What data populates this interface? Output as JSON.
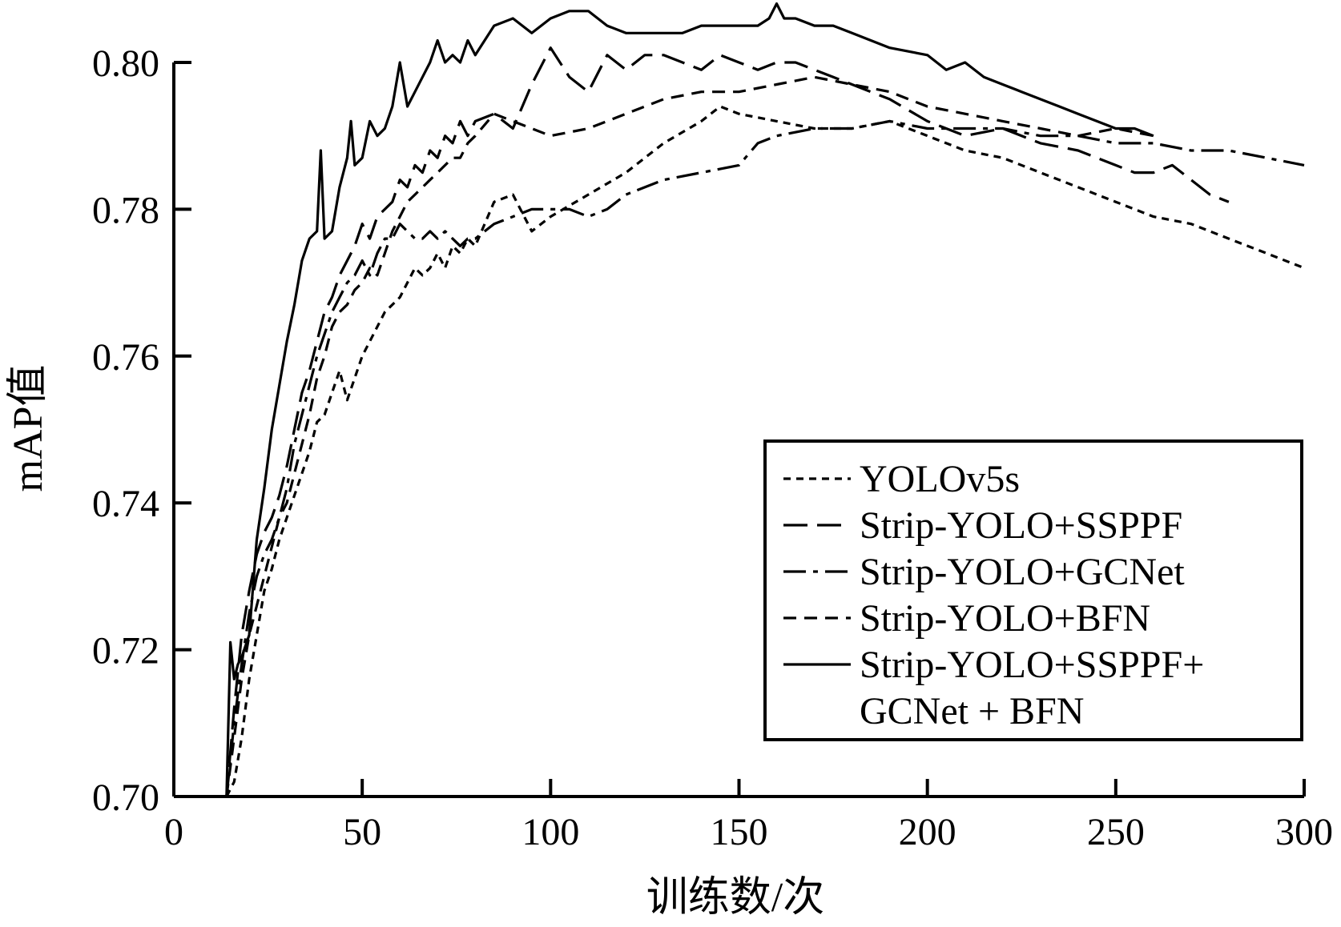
{
  "chart_data": {
    "type": "line",
    "title": "",
    "xlabel": "训练数/次",
    "ylabel": "mAP值",
    "xlim": [
      0,
      300
    ],
    "ylim": [
      0.7,
      0.8
    ],
    "xticks": [
      "0",
      "50",
      "100",
      "150",
      "200",
      "250",
      "300"
    ],
    "yticks": [
      "0.70",
      "0.72",
      "0.74",
      "0.76",
      "0.78",
      "0.80"
    ],
    "grid": false,
    "legend_position": "lower-right",
    "series": [
      {
        "name": "YOLOv5s",
        "dash": "short",
        "x": [
          14,
          16,
          18,
          20,
          22,
          24,
          26,
          28,
          30,
          32,
          34,
          36,
          38,
          40,
          42,
          44,
          46,
          48,
          50,
          52,
          54,
          56,
          58,
          60,
          62,
          64,
          66,
          68,
          70,
          72,
          74,
          76,
          78,
          80,
          85,
          90,
          95,
          100,
          110,
          120,
          130,
          140,
          145,
          150,
          160,
          170,
          180,
          190,
          200,
          210,
          220,
          230,
          240,
          250,
          260,
          270,
          280,
          290,
          300
        ],
        "y": [
          0.7,
          0.702,
          0.708,
          0.716,
          0.722,
          0.728,
          0.731,
          0.735,
          0.738,
          0.741,
          0.744,
          0.747,
          0.751,
          0.752,
          0.755,
          0.758,
          0.754,
          0.757,
          0.76,
          0.762,
          0.764,
          0.766,
          0.767,
          0.768,
          0.77,
          0.772,
          0.771,
          0.772,
          0.774,
          0.772,
          0.775,
          0.774,
          0.776,
          0.775,
          0.781,
          0.782,
          0.777,
          0.779,
          0.782,
          0.785,
          0.789,
          0.792,
          0.794,
          0.793,
          0.792,
          0.791,
          0.791,
          0.792,
          0.79,
          0.788,
          0.787,
          0.785,
          0.783,
          0.781,
          0.779,
          0.778,
          0.776,
          0.774,
          0.772
        ]
      },
      {
        "name": "Strip-YOLO+SSPPF",
        "dash": "long",
        "x": [
          14,
          16,
          18,
          20,
          22,
          24,
          26,
          28,
          30,
          32,
          34,
          36,
          38,
          40,
          42,
          44,
          46,
          48,
          50,
          52,
          54,
          56,
          58,
          60,
          62,
          64,
          66,
          68,
          70,
          72,
          74,
          76,
          78,
          80,
          85,
          90,
          95,
          100,
          105,
          110,
          115,
          120,
          125,
          130,
          135,
          140,
          145,
          150,
          155,
          160,
          165,
          170,
          175,
          180,
          185,
          190,
          200,
          210,
          220,
          230,
          240,
          250,
          255,
          260,
          265,
          270,
          275,
          280
        ],
        "y": [
          0.7,
          0.712,
          0.722,
          0.728,
          0.733,
          0.736,
          0.738,
          0.741,
          0.745,
          0.75,
          0.755,
          0.758,
          0.762,
          0.766,
          0.768,
          0.771,
          0.773,
          0.775,
          0.778,
          0.776,
          0.779,
          0.78,
          0.781,
          0.784,
          0.783,
          0.786,
          0.785,
          0.788,
          0.787,
          0.79,
          0.789,
          0.792,
          0.79,
          0.792,
          0.793,
          0.791,
          0.797,
          0.802,
          0.798,
          0.796,
          0.801,
          0.799,
          0.801,
          0.801,
          0.8,
          0.799,
          0.801,
          0.8,
          0.799,
          0.8,
          0.8,
          0.799,
          0.798,
          0.797,
          0.796,
          0.795,
          0.792,
          0.79,
          0.791,
          0.789,
          0.788,
          0.786,
          0.785,
          0.785,
          0.786,
          0.784,
          0.782,
          0.781
        ]
      },
      {
        "name": "Strip-YOLO+GCNet",
        "dash": "dashdot",
        "x": [
          14,
          16,
          18,
          20,
          22,
          24,
          26,
          28,
          30,
          32,
          34,
          36,
          38,
          40,
          42,
          44,
          46,
          48,
          50,
          52,
          54,
          56,
          58,
          60,
          62,
          64,
          66,
          68,
          70,
          72,
          74,
          76,
          78,
          80,
          85,
          90,
          95,
          100,
          105,
          110,
          115,
          120,
          130,
          140,
          150,
          155,
          160,
          170,
          180,
          190,
          200,
          210,
          220,
          230,
          240,
          250,
          260,
          270,
          280,
          290,
          300
        ],
        "y": [
          0.7,
          0.71,
          0.718,
          0.725,
          0.73,
          0.733,
          0.735,
          0.738,
          0.742,
          0.748,
          0.752,
          0.756,
          0.76,
          0.763,
          0.766,
          0.768,
          0.77,
          0.771,
          0.773,
          0.771,
          0.774,
          0.776,
          0.776,
          0.778,
          0.777,
          0.776,
          0.776,
          0.777,
          0.776,
          0.777,
          0.776,
          0.775,
          0.776,
          0.776,
          0.778,
          0.779,
          0.78,
          0.78,
          0.78,
          0.779,
          0.78,
          0.782,
          0.784,
          0.785,
          0.786,
          0.789,
          0.79,
          0.791,
          0.791,
          0.792,
          0.791,
          0.791,
          0.791,
          0.79,
          0.79,
          0.789,
          0.789,
          0.788,
          0.788,
          0.787,
          0.786
        ]
      },
      {
        "name": "Strip-YOLO+BFN",
        "dash": "medium",
        "x": [
          14,
          16,
          18,
          20,
          22,
          24,
          26,
          28,
          30,
          32,
          34,
          36,
          38,
          40,
          42,
          44,
          46,
          48,
          50,
          52,
          54,
          56,
          58,
          60,
          62,
          64,
          66,
          68,
          70,
          72,
          74,
          76,
          78,
          80,
          85,
          90,
          95,
          100,
          110,
          120,
          130,
          140,
          150,
          160,
          170,
          180,
          190,
          200,
          210,
          220,
          230,
          240,
          250,
          260
        ],
        "y": [
          0.7,
          0.708,
          0.716,
          0.722,
          0.726,
          0.73,
          0.734,
          0.738,
          0.74,
          0.744,
          0.748,
          0.752,
          0.757,
          0.76,
          0.764,
          0.766,
          0.767,
          0.769,
          0.77,
          0.772,
          0.771,
          0.774,
          0.777,
          0.779,
          0.781,
          0.782,
          0.783,
          0.784,
          0.785,
          0.786,
          0.787,
          0.787,
          0.789,
          0.79,
          0.793,
          0.792,
          0.791,
          0.79,
          0.791,
          0.793,
          0.795,
          0.796,
          0.796,
          0.797,
          0.798,
          0.797,
          0.796,
          0.794,
          0.793,
          0.792,
          0.791,
          0.79,
          0.791,
          0.79
        ]
      },
      {
        "name": "Strip-YOLO+SSPPF+ GCNet + BFN",
        "dash": "solid",
        "x": [
          14,
          15,
          16,
          17,
          18,
          20,
          22,
          24,
          26,
          28,
          30,
          32,
          34,
          36,
          38,
          39,
          40,
          42,
          44,
          46,
          47,
          48,
          50,
          52,
          54,
          56,
          58,
          60,
          62,
          64,
          66,
          68,
          70,
          72,
          74,
          76,
          78,
          80,
          85,
          90,
          95,
          100,
          105,
          110,
          115,
          120,
          125,
          130,
          135,
          140,
          145,
          150,
          155,
          158,
          160,
          162,
          165,
          170,
          175,
          180,
          185,
          190,
          200,
          205,
          210,
          215,
          220,
          225,
          230,
          235,
          240,
          245,
          250,
          255,
          260
        ],
        "y": [
          0.7,
          0.721,
          0.716,
          0.718,
          0.719,
          0.722,
          0.735,
          0.742,
          0.75,
          0.756,
          0.762,
          0.767,
          0.773,
          0.776,
          0.777,
          0.788,
          0.776,
          0.777,
          0.783,
          0.787,
          0.792,
          0.786,
          0.787,
          0.792,
          0.79,
          0.791,
          0.794,
          0.8,
          0.794,
          0.796,
          0.798,
          0.8,
          0.803,
          0.8,
          0.801,
          0.8,
          0.803,
          0.801,
          0.805,
          0.806,
          0.804,
          0.806,
          0.807,
          0.807,
          0.805,
          0.804,
          0.804,
          0.804,
          0.804,
          0.805,
          0.805,
          0.805,
          0.805,
          0.806,
          0.808,
          0.806,
          0.806,
          0.805,
          0.805,
          0.804,
          0.803,
          0.802,
          0.801,
          0.799,
          0.8,
          0.798,
          0.797,
          0.796,
          0.795,
          0.794,
          0.793,
          0.792,
          0.791,
          0.791,
          0.79
        ]
      }
    ]
  }
}
